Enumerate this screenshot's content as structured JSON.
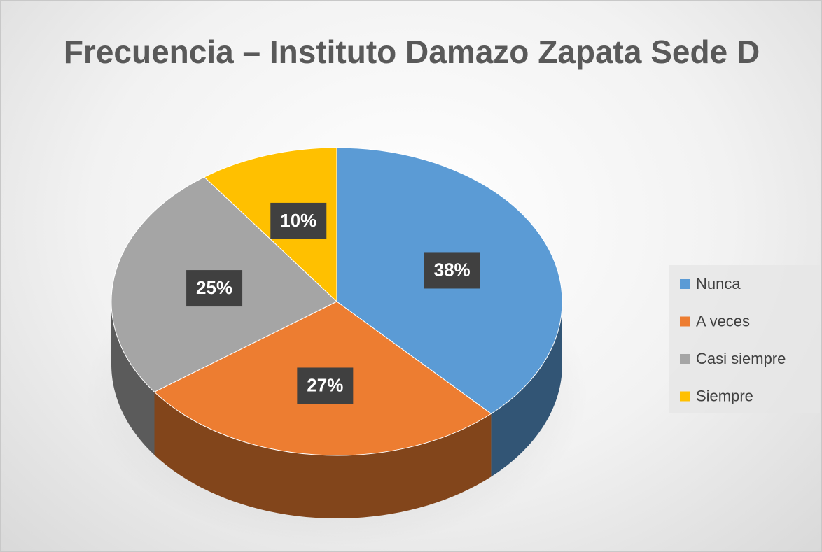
{
  "chart_data": {
    "type": "pie",
    "title": "Frecuencia – Instituto Damazo Zapata Sede D",
    "categories": [
      "Nunca",
      "A veces",
      "Casi siempre",
      "Siempre"
    ],
    "values": [
      38,
      27,
      25,
      10
    ],
    "value_labels": [
      "38%",
      "27%",
      "25%",
      "10%"
    ],
    "colors": [
      "#5b9bd5",
      "#ed7d31",
      "#a5a5a5",
      "#ffc000"
    ],
    "legend": "right"
  }
}
